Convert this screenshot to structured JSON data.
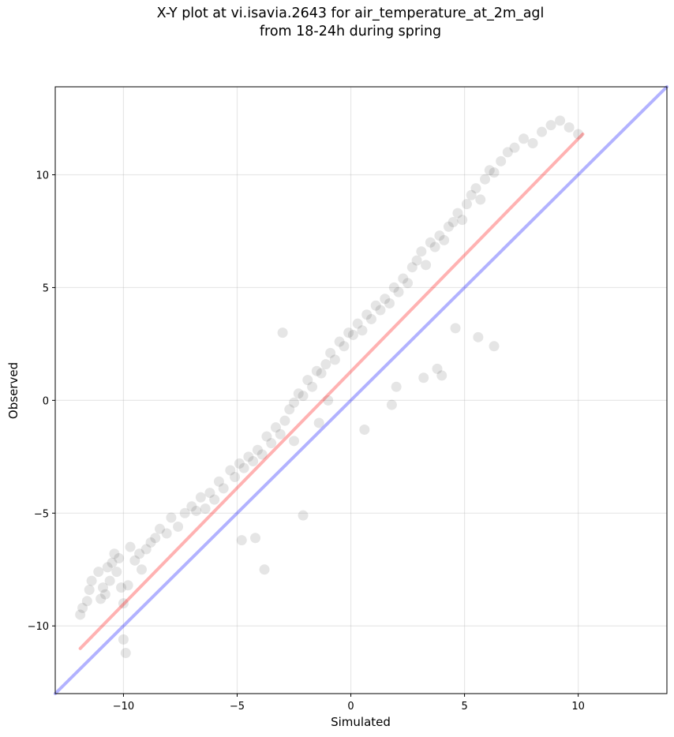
{
  "chart_data": {
    "type": "scatter",
    "title_line1": "X-Y plot at vi.isavia.2643 for air_temperature_at_2m_agl",
    "title_line2": "from 18-24h during spring",
    "xlabel": "Simulated",
    "ylabel": "Observed",
    "xlim": [
      -13.0,
      13.9
    ],
    "ylim": [
      -13.0,
      13.9
    ],
    "xticks": [
      -10,
      -5,
      0,
      5,
      10
    ],
    "yticks": [
      -10,
      -5,
      0,
      5,
      10
    ],
    "xtick_labels": [
      "−10",
      "−5",
      "0",
      "5",
      "10"
    ],
    "ytick_labels": [
      "−10",
      "−5",
      "0",
      "5",
      "10"
    ],
    "grid": true,
    "series": [
      {
        "kind": "points",
        "color": "#000000",
        "opacity": 0.1,
        "x": [
          -11.9,
          -11.8,
          -11.6,
          -11.5,
          -11.4,
          -11.1,
          -11.0,
          -10.9,
          -10.8,
          -10.7,
          -10.6,
          -10.5,
          -10.4,
          -10.3,
          -10.2,
          -10.1,
          -10.0,
          -10.0,
          -9.9,
          -9.8,
          -9.7,
          -9.5,
          -9.3,
          -9.2,
          -9.0,
          -8.8,
          -8.6,
          -8.4,
          -8.1,
          -7.9,
          -7.6,
          -7.3,
          -7.0,
          -6.8,
          -6.6,
          -6.4,
          -6.2,
          -6.0,
          -5.8,
          -5.6,
          -5.3,
          -5.1,
          -4.9,
          -4.7,
          -4.5,
          -4.3,
          -4.1,
          -3.9,
          -3.7,
          -3.5,
          -3.3,
          -3.1,
          -2.9,
          -2.7,
          -2.5,
          -2.3,
          -2.1,
          -1.9,
          -1.7,
          -1.5,
          -1.3,
          -1.1,
          -0.9,
          -0.7,
          -0.5,
          -0.3,
          -0.1,
          0.1,
          0.3,
          0.5,
          0.7,
          0.9,
          1.1,
          1.3,
          1.5,
          1.7,
          1.9,
          2.1,
          2.3,
          2.5,
          2.7,
          2.9,
          3.1,
          3.3,
          3.5,
          3.7,
          3.9,
          4.1,
          4.3,
          4.5,
          4.7,
          4.9,
          5.1,
          5.3,
          5.5,
          5.7,
          5.9,
          6.1,
          6.3,
          6.6,
          6.9,
          7.2,
          7.6,
          8.0,
          8.4,
          8.8,
          9.2,
          9.6,
          10.0,
          -3.0,
          -4.2,
          -4.8,
          -3.8,
          -2.1,
          2.0,
          3.8,
          5.6,
          6.3,
          1.8,
          0.6,
          -1.4,
          -2.5,
          -1.0,
          3.2,
          4.0,
          4.6
        ],
        "y": [
          -9.5,
          -9.2,
          -8.9,
          -8.4,
          -8.0,
          -7.6,
          -8.8,
          -8.3,
          -8.6,
          -7.4,
          -8.0,
          -7.2,
          -6.8,
          -7.6,
          -7.0,
          -8.3,
          -9.0,
          -10.6,
          -11.2,
          -8.2,
          -6.5,
          -7.1,
          -6.8,
          -7.5,
          -6.6,
          -6.3,
          -6.1,
          -5.7,
          -5.9,
          -5.2,
          -5.6,
          -5.0,
          -4.7,
          -4.9,
          -4.3,
          -4.8,
          -4.1,
          -4.4,
          -3.6,
          -3.9,
          -3.1,
          -3.4,
          -2.8,
          -3.0,
          -2.5,
          -2.7,
          -2.2,
          -2.4,
          -1.6,
          -1.9,
          -1.2,
          -1.5,
          -0.9,
          -0.4,
          -0.1,
          0.3,
          0.2,
          0.9,
          0.6,
          1.3,
          1.2,
          1.6,
          2.1,
          1.8,
          2.6,
          2.4,
          3.0,
          2.9,
          3.4,
          3.1,
          3.8,
          3.6,
          4.2,
          4.0,
          4.5,
          4.3,
          5.0,
          4.8,
          5.4,
          5.2,
          5.9,
          6.2,
          6.6,
          6.0,
          7.0,
          6.8,
          7.3,
          7.1,
          7.7,
          7.9,
          8.3,
          8.0,
          8.7,
          9.1,
          9.4,
          8.9,
          9.8,
          10.2,
          10.1,
          10.6,
          11.0,
          11.2,
          11.6,
          11.4,
          11.9,
          12.2,
          12.4,
          12.1,
          11.8,
          3.0,
          -6.1,
          -6.2,
          -7.5,
          -5.1,
          0.6,
          1.4,
          2.8,
          2.4,
          -0.2,
          -1.3,
          -1.0,
          -1.8,
          0.0,
          1.0,
          1.1,
          3.2
        ]
      },
      {
        "kind": "line",
        "name": "",
        "color": "#ff0000",
        "opacity": 0.3,
        "x": [
          -11.9,
          10.2
        ],
        "y": [
          -11.0,
          11.8
        ]
      },
      {
        "kind": "line",
        "name": "",
        "color": "#0000ff",
        "opacity": 0.3,
        "x": [
          -13.0,
          13.9
        ],
        "y": [
          -13.0,
          13.9
        ]
      }
    ]
  }
}
